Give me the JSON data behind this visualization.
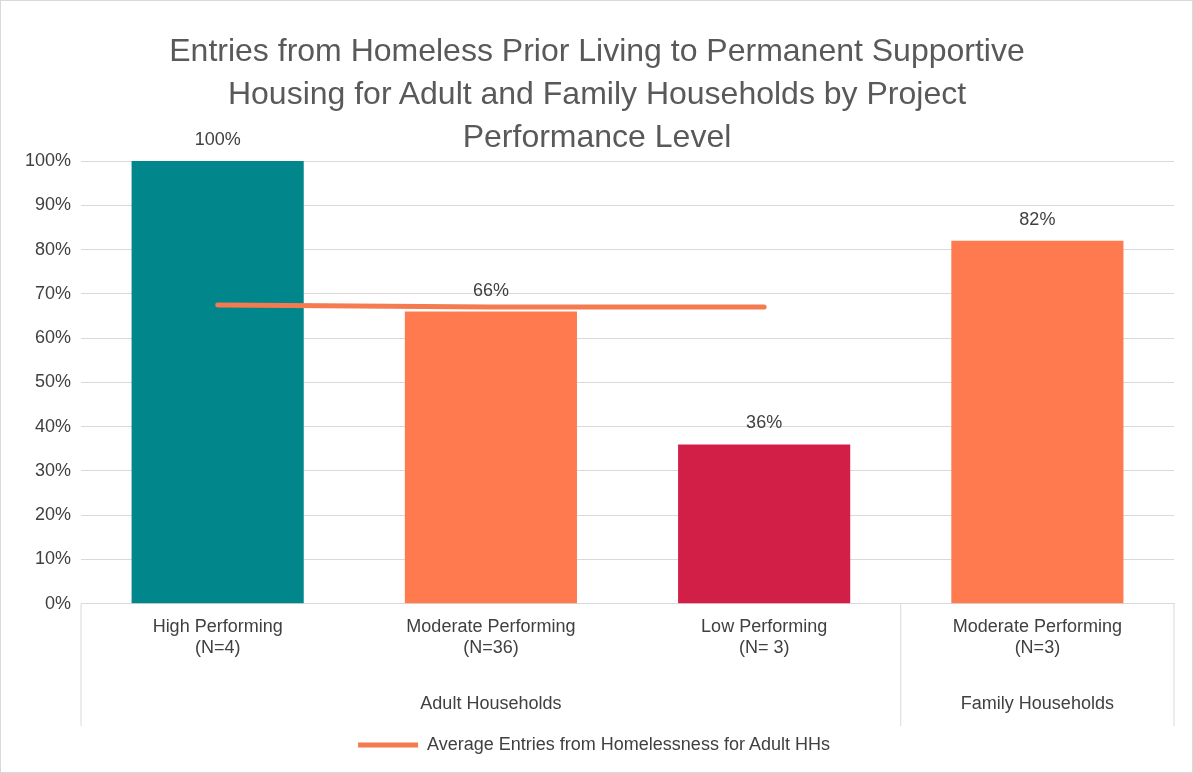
{
  "chart_data": {
    "type": "bar",
    "title": "Entries from Homeless Prior Living to Permanent Supportive Housing for Adult and Family Households by Project Performance Level",
    "categories": [
      "High Performing\n(N=4)",
      "Moderate Performing\n(N=36)",
      "Low Performing\n(N= 3)",
      "Moderate Performing\n(N=3)"
    ],
    "series": [
      {
        "values": [
          100,
          66,
          36,
          82
        ],
        "colors": [
          "#00868b",
          "#ff7a4f",
          "#d21f48",
          "#ff7a4f"
        ],
        "value_labels": [
          "100%",
          "66%",
          "36%",
          "82%"
        ]
      },
      {
        "type": "line",
        "name": "Average Entries from Homelessness for Adult HHs",
        "color": "#f47b50",
        "values": [
          67.5,
          67,
          67,
          null
        ]
      }
    ],
    "ylim": [
      0,
      100
    ],
    "yticks": [
      {
        "value": 0,
        "label": "0%"
      },
      {
        "value": 10,
        "label": "10%"
      },
      {
        "value": 20,
        "label": "20%"
      },
      {
        "value": 30,
        "label": "30%"
      },
      {
        "value": 40,
        "label": "40%"
      },
      {
        "value": 50,
        "label": "50%"
      },
      {
        "value": 60,
        "label": "60%"
      },
      {
        "value": 70,
        "label": "70%"
      },
      {
        "value": 80,
        "label": "80%"
      },
      {
        "value": 90,
        "label": "90%"
      },
      {
        "value": 100,
        "label": "100%"
      }
    ],
    "annotations": [
      "Adult Households",
      "Family Households"
    ],
    "grid": "y",
    "legend": "bottom",
    "marker": "none"
  }
}
